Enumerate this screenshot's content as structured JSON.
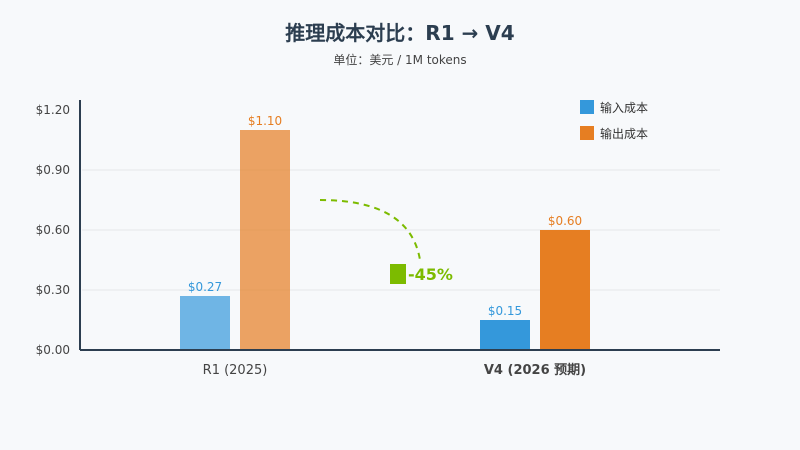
{
  "chart_data": {
    "type": "bar",
    "title": "推理成本对比：R1 → V4",
    "subtitle": "单位：美元 / 1M tokens",
    "categories": [
      "R1 (2025)",
      "V4 (2026 预期)"
    ],
    "series": [
      {
        "name": "输入成本",
        "values": [
          0.27,
          0.15
        ],
        "labels": [
          "$0.27",
          "$0.15"
        ],
        "color": "#3498db"
      },
      {
        "name": "输出成本",
        "values": [
          1.1,
          0.6
        ],
        "labels": [
          "$1.10",
          "$0.60"
        ],
        "color": "#e67e22"
      }
    ],
    "ylim": [
      0,
      1.2
    ],
    "yticks": [
      0,
      0.3,
      0.6,
      0.9,
      1.2
    ],
    "ytick_labels": [
      "$0.00",
      "$0.30",
      "$0.60",
      "$0.90",
      "$1.20"
    ],
    "grid": true,
    "legend": "top-right",
    "annotation": {
      "text": "-45%",
      "icon": "chart-decrease-icon",
      "color": "#7cbb00"
    },
    "highlight_category_color": "#7cbb00"
  }
}
